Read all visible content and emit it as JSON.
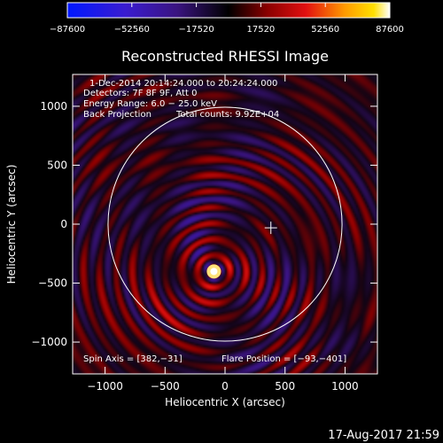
{
  "chart_data": {
    "type": "heatmap",
    "title": "Reconstructed RHESSI Image",
    "xlabel": "Heliocentric X (arcsec)",
    "ylabel": "Heliocentric Y (arcsec)",
    "xlim": [
      -1270,
      1270
    ],
    "ylim": [
      -1270,
      1270
    ],
    "x_ticks": [
      -1000,
      -500,
      0,
      500,
      1000
    ],
    "y_ticks": [
      -1000,
      -500,
      0,
      500,
      1000
    ],
    "x_tick_labels": [
      "−1000",
      "−500",
      "0",
      "500",
      "1000"
    ],
    "y_tick_labels": [
      "−1000",
      "−500",
      "0",
      "500",
      "1000"
    ],
    "colorbar": {
      "min": -87600,
      "max": 87600,
      "ticks": [
        -87600,
        -52560,
        -17520,
        17520,
        52560,
        87600
      ],
      "tick_labels": [
        "−87600",
        "−52560",
        "−17520",
        "17520",
        "52560",
        "87600"
      ]
    },
    "annotations": {
      "time_range": "1-Dec-2014 20:14:24.000 to 20:24:24.000",
      "detectors": "Detectors: 7F 8F 9F, Att 0",
      "energy": "Energy Range: 6.0 − 25.0 keV",
      "method": "Back Projection",
      "counts": "Total counts: 9.92E+04",
      "spin_axis": "Spin Axis = [382,−31]",
      "flare_position": "Flare Position = [−93,−401]"
    },
    "spin_axis": [
      382,
      -31
    ],
    "flare_position": [
      -93,
      -401
    ],
    "solar_limb_radius": 975,
    "source": {
      "x": -93,
      "y": -401,
      "peak": 87600
    }
  },
  "footer": {
    "timestamp": "17-Aug-2017 21:59"
  }
}
